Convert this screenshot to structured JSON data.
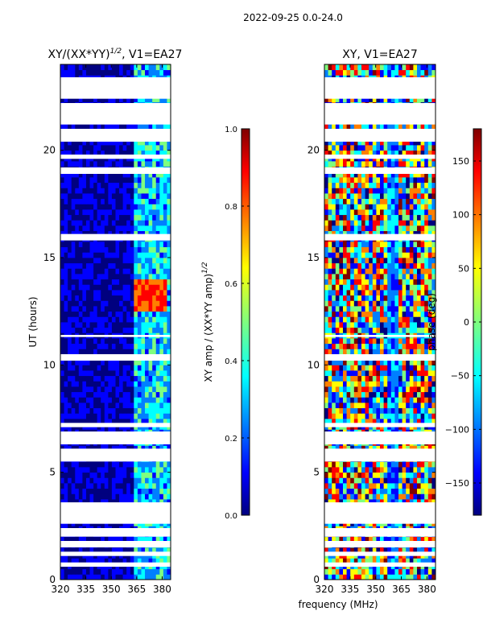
{
  "figure_title": "2022-09-25 0.0-24.0",
  "shared_xlabel": "frequency (MHz)",
  "colors": {
    "jet": [
      "#00007f",
      "#0000ff",
      "#007fff",
      "#00ffff",
      "#7fff7f",
      "#ffff00",
      "#ff7f00",
      "#ff0000",
      "#7f0000"
    ]
  },
  "chart_data": [
    {
      "type": "heatmap",
      "title": "XY/(XX*YY)",
      "title_exponent": "1/2",
      "title_suffix": ", V1=EA27",
      "ylabel": "UT (hours)",
      "xlim": [
        320,
        385
      ],
      "ylim": [
        0,
        24
      ],
      "xticks": [
        "320",
        "335",
        "350",
        "365",
        "380"
      ],
      "yticks": [
        "0",
        "5",
        "10",
        "15",
        "20"
      ],
      "xtick_values": [
        320,
        335,
        350,
        365,
        380
      ],
      "ytick_values": [
        0,
        5,
        10,
        15,
        20
      ],
      "colorbar": {
        "label": "XY amp / (XX*YY amp)",
        "label_exponent": "1/2",
        "range": [
          0.0,
          1.0
        ],
        "ticks": [
          "0.0",
          "0.2",
          "0.4",
          "0.6",
          "0.8",
          "1.0"
        ],
        "tick_values": [
          0.0,
          0.2,
          0.4,
          0.6,
          0.8,
          1.0
        ]
      },
      "high_value_block": {
        "freq": [
          362,
          381
        ],
        "ut": [
          12.4,
          13.8
        ],
        "value": 0.85
      },
      "rfi_band": [
        362,
        383
      ],
      "data_gaps_ut": [
        [
          0.6,
          0.8
        ],
        [
          1.1,
          1.3
        ],
        [
          1.5,
          1.8
        ],
        [
          2.0,
          2.4
        ],
        [
          2.6,
          3.6
        ],
        [
          5.5,
          6.1
        ],
        [
          6.3,
          6.9
        ],
        [
          7.1,
          7.3
        ],
        [
          10.2,
          10.5
        ],
        [
          11.3,
          11.4
        ],
        [
          15.8,
          16.1
        ],
        [
          18.9,
          19.2
        ],
        [
          19.6,
          19.8
        ],
        [
          20.4,
          21.0
        ],
        [
          21.2,
          22.2
        ],
        [
          22.4,
          23.4
        ]
      ]
    },
    {
      "type": "heatmap",
      "title": "XY, V1=EA27",
      "ylabel": "",
      "xlim": [
        320,
        385
      ],
      "ylim": [
        0,
        24
      ],
      "xticks": [
        "320",
        "335",
        "350",
        "365",
        "380"
      ],
      "yticks": [
        "0",
        "5",
        "10",
        "15",
        "20"
      ],
      "xtick_values": [
        320,
        335,
        350,
        365,
        380
      ],
      "ytick_values": [
        0,
        5,
        10,
        15,
        20
      ],
      "colorbar": {
        "label": "phase (deg)",
        "range": [
          -180,
          180
        ],
        "ticks": [
          "−150",
          "−100",
          "−50",
          "0",
          "50",
          "100",
          "150"
        ],
        "tick_values": [
          -150,
          -100,
          -50,
          0,
          50,
          100,
          150
        ]
      },
      "data_gaps_ut": [
        [
          0.6,
          0.8
        ],
        [
          1.1,
          1.3
        ],
        [
          1.5,
          1.8
        ],
        [
          2.0,
          2.4
        ],
        [
          2.6,
          3.6
        ],
        [
          5.5,
          6.1
        ],
        [
          6.3,
          6.9
        ],
        [
          7.1,
          7.3
        ],
        [
          10.2,
          10.5
        ],
        [
          11.3,
          11.4
        ],
        [
          15.8,
          16.1
        ],
        [
          18.9,
          19.2
        ],
        [
          19.6,
          19.8
        ],
        [
          20.4,
          21.0
        ],
        [
          21.2,
          22.2
        ],
        [
          22.4,
          23.4
        ]
      ]
    }
  ]
}
